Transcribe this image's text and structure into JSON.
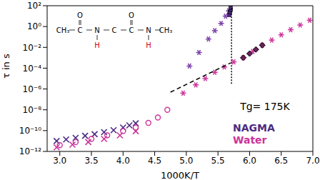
{
  "chart_data": {
    "type": "scatter",
    "x_label": "1000K/T",
    "y_label": "τ in s",
    "log": "y",
    "legend": "lower right",
    "xlim": [
      2.8,
      7.0
    ],
    "xticks": [
      {
        "value": 3.0,
        "label": "3.0"
      },
      {
        "value": 3.5,
        "label": "3.5"
      },
      {
        "value": 4.0,
        "label": "4.0"
      },
      {
        "value": 4.5,
        "label": "4.5"
      },
      {
        "value": 5.0,
        "label": "5.0"
      },
      {
        "value": 5.5,
        "label": "5.5"
      },
      {
        "value": 6.0,
        "label": "6.0"
      },
      {
        "value": 6.5,
        "label": "6.5"
      },
      {
        "value": 7.0,
        "label": "7.0"
      }
    ],
    "ylim": [
      1e-12,
      100
    ],
    "yticks": [
      {
        "value": 1e-12,
        "label": "10⁻¹²"
      },
      {
        "value": 1e-10,
        "label": "10⁻¹⁰"
      },
      {
        "value": 1e-08,
        "label": "10⁻⁸"
      },
      {
        "value": 1e-06,
        "label": "10⁻⁶"
      },
      {
        "value": 0.0001,
        "label": "10⁻⁴"
      },
      {
        "value": 0.01,
        "label": "10⁻²"
      },
      {
        "value": 1,
        "label": "10⁰"
      },
      {
        "value": 100,
        "label": "10²"
      }
    ],
    "series": [
      {
        "name": "NAGMA",
        "color": "#4b2a82",
        "marker": "cross",
        "x": [
          2.95,
          3.1,
          3.25,
          3.4,
          3.55,
          3.7,
          3.85,
          4.0,
          4.1,
          4.2
        ],
        "values": [
          1e-11,
          1.4e-11,
          2e-11,
          3.2e-11,
          4.5e-11,
          7.1e-11,
          1.1e-10,
          2e-10,
          3.2e-10,
          5e-10
        ]
      },
      {
        "name": "Water",
        "color": "#cc3399",
        "marker": "cross",
        "x": [
          2.95,
          3.2,
          3.45,
          3.7,
          3.95,
          4.2
        ],
        "values": [
          2.5e-12,
          4.5e-12,
          7.9e-12,
          1.6e-11,
          3.5e-11,
          8.9e-11
        ]
      },
      {
        "name": "Water",
        "color": "#cc3399",
        "marker": "circle",
        "x": [
          3.0,
          3.25,
          3.5,
          3.75,
          4.0,
          4.2,
          4.4,
          4.55,
          4.7
        ],
        "values": [
          4e-12,
          7.9e-12,
          1.6e-11,
          3.5e-11,
          8.9e-11,
          2e-10,
          5.6e-10,
          1.8e-09,
          1e-08
        ]
      },
      {
        "name": "NAGMA",
        "color": "#7b3fa8",
        "marker": "asterisk",
        "x": [
          5.05,
          5.2,
          5.35,
          5.45,
          5.55,
          5.62,
          5.67
        ],
        "values": [
          0.00016,
          0.0032,
          0.063,
          0.4,
          2.0,
          10,
          32
        ]
      },
      {
        "name": "NAGMA",
        "color": "#4b2a82",
        "marker": "square",
        "x": [
          5.68,
          5.69,
          5.7,
          5.7
        ],
        "values": [
          13,
          25,
          40,
          63
        ]
      },
      {
        "name": "Water",
        "color": "#cc3399",
        "marker": "asterisk",
        "x": [
          4.95,
          5.15,
          5.3,
          5.45,
          5.6,
          5.75,
          5.9,
          6.05,
          6.2,
          6.35,
          6.5,
          6.65,
          6.8,
          6.95
        ],
        "values": [
          4e-07,
          2.5e-06,
          1e-05,
          4e-05,
          0.00013,
          0.0004,
          0.001,
          0.004,
          0.016,
          0.05,
          0.16,
          0.5,
          1.4,
          4.0
        ]
      },
      {
        "name": "Water",
        "color": "#6b1f5e",
        "marker": "diamond",
        "x": [
          5.9,
          6.0,
          6.1,
          6.2
        ],
        "values": [
          0.001,
          0.0025,
          0.0063,
          0.016
        ]
      },
      {
        "type": "line",
        "line_style": "dashed",
        "color": "#000000",
        "x": [
          4.75,
          5.7
        ],
        "values": [
          5e-07,
          0.00032
        ]
      },
      {
        "type": "line",
        "line_style": "dotted",
        "color": "#000000",
        "x": [
          5.714,
          5.714
        ],
        "values": [
          3.2e-06,
          100
        ]
      }
    ],
    "annotations": [
      {
        "text": "Tg= 175K",
        "x": 5.85,
        "y": 1e-08
      }
    ]
  },
  "inset": {
    "atoms": [
      "CH₃",
      "C",
      "N",
      "C",
      "C",
      "N",
      "CH₃"
    ],
    "above": [
      null,
      "O",
      null,
      null,
      "O",
      null,
      null
    ],
    "below": [
      null,
      null,
      "H",
      null,
      null,
      "H",
      null
    ]
  }
}
